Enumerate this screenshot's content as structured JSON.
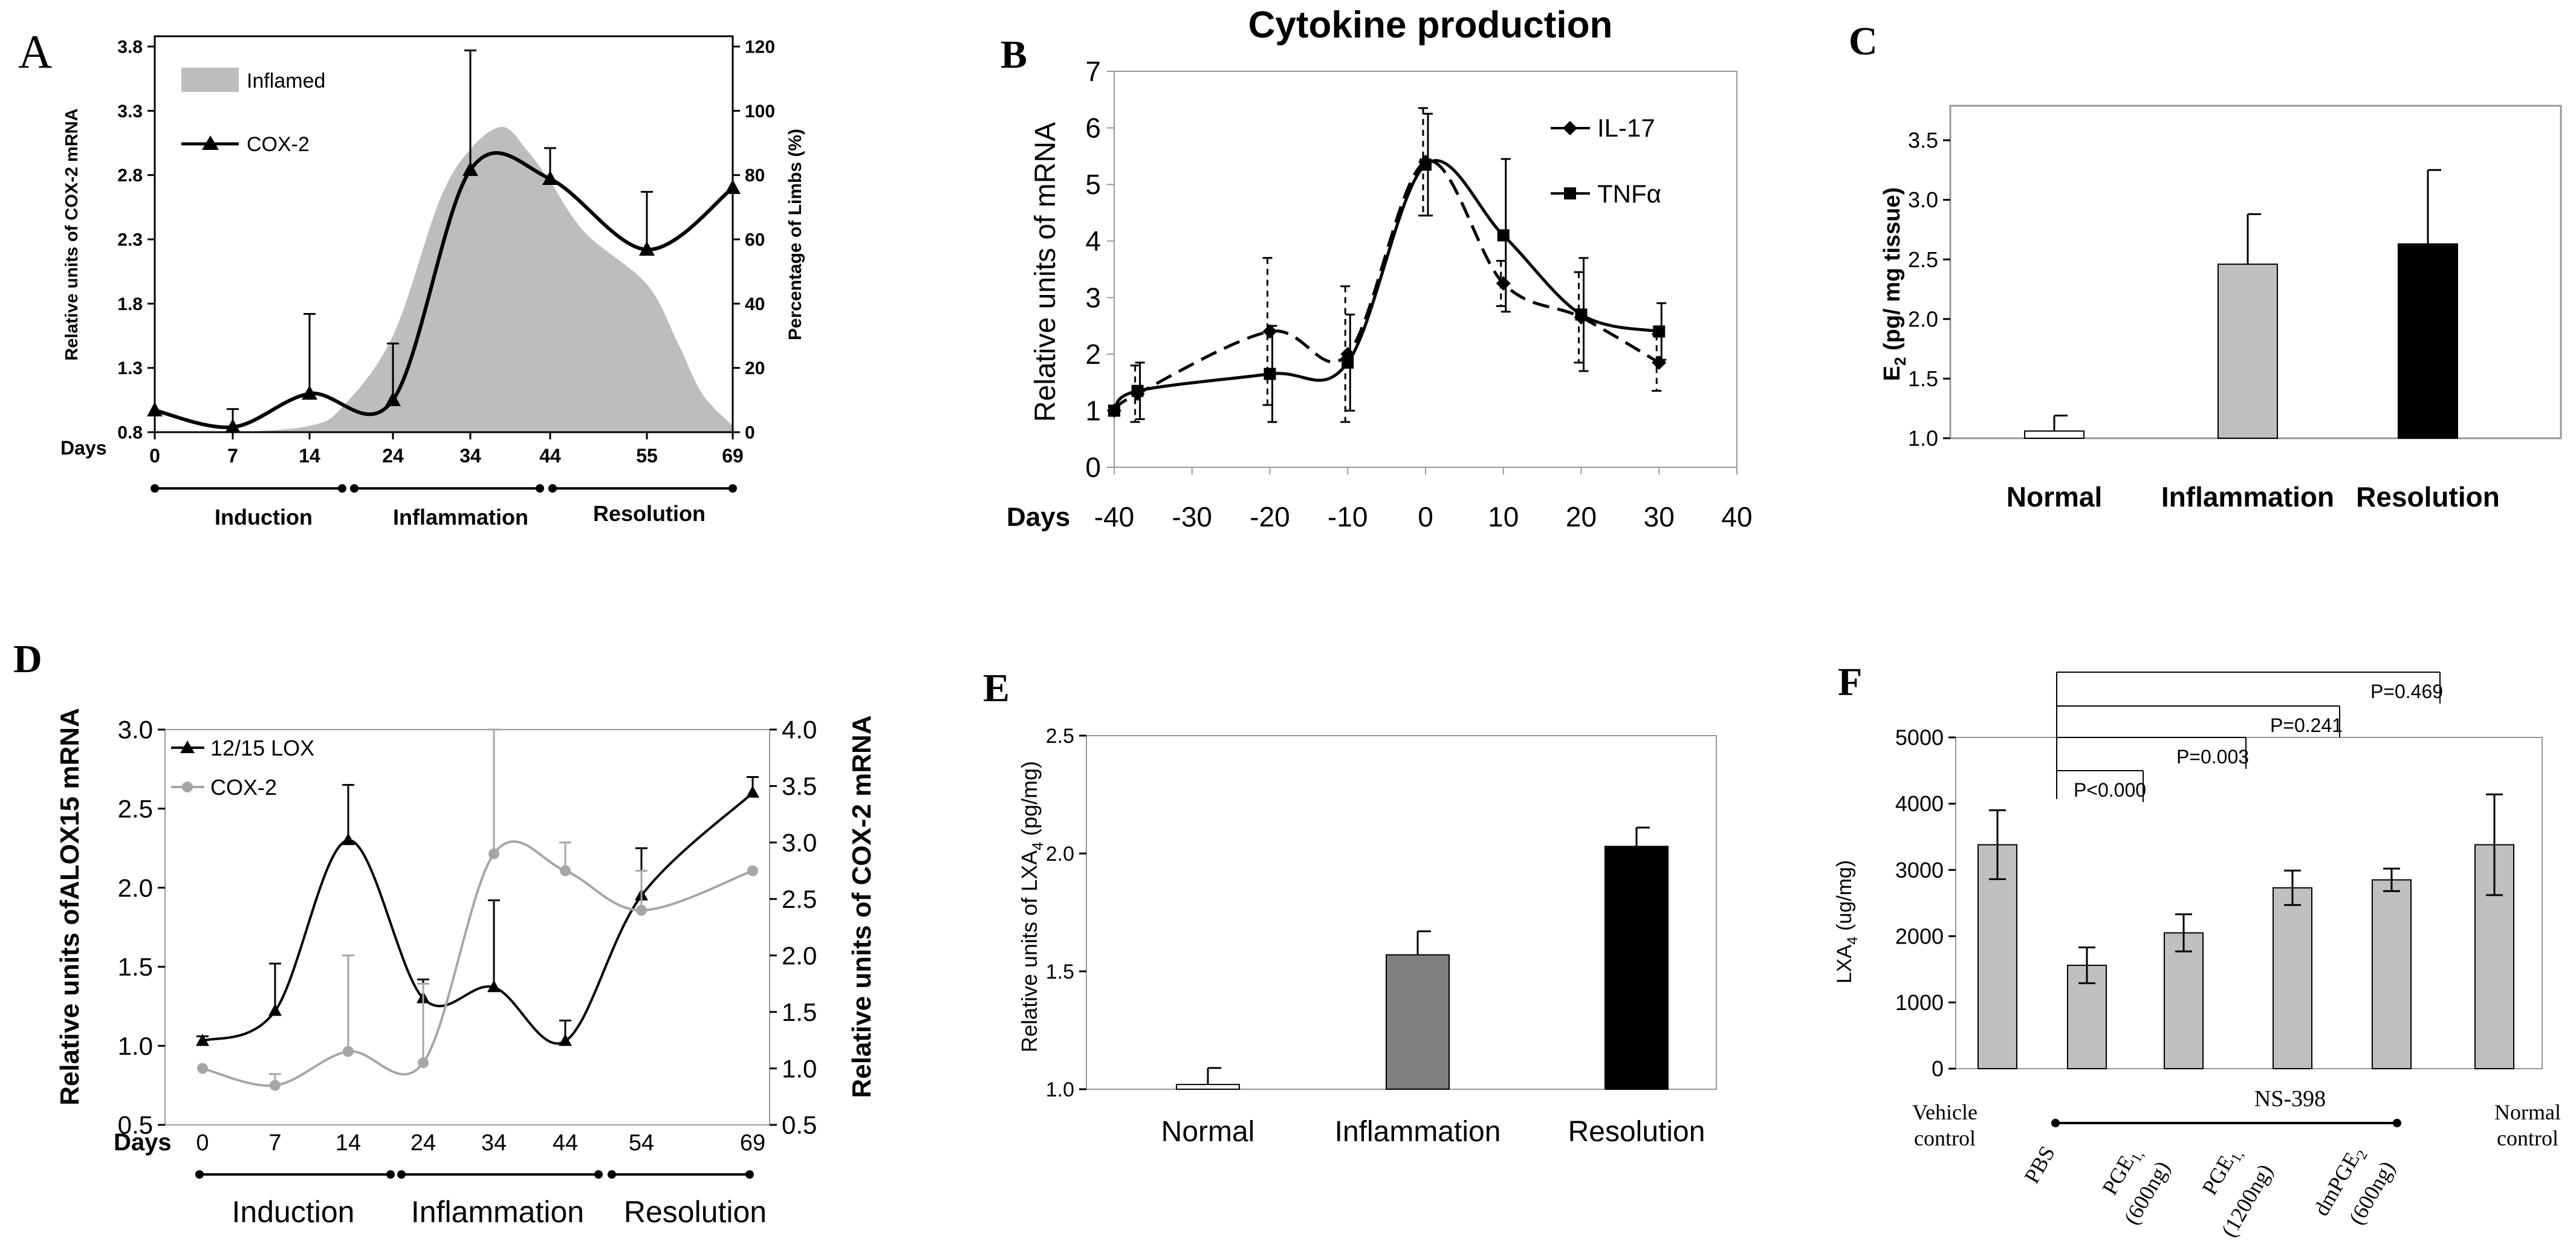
{
  "colors": {
    "axis": "#000000",
    "inflamed_area": "#bdbdbd",
    "grey_bar": "#bfbfbf",
    "dark_grey_bar": "#7f7f7f",
    "black_bar": "#000000",
    "light_grey_line": "#a6a6a6",
    "white_bar": "#ffffff"
  },
  "chart_data": [
    {
      "panel": "A",
      "type": "line",
      "xlabel": "Days",
      "categories": [
        "0",
        "7",
        "14",
        "24",
        "34",
        "44",
        "55",
        "69"
      ],
      "ylabel": "Relative units of COX-2 mRNA",
      "yticks": [
        "0.8",
        "1.3",
        "1.8",
        "2.3",
        "2.8",
        "3.3",
        "3.8"
      ],
      "ylim": [
        0.8,
        3.8
      ],
      "y2label": "Percentage of Limbs (%)",
      "y2ticks": [
        "0",
        "20",
        "40",
        "60",
        "80",
        "100",
        "120"
      ],
      "y2lim": [
        0,
        120
      ],
      "legend": [
        "Inflamed",
        "COX-2"
      ],
      "phases": [
        "Induction",
        "Inflammation",
        "Resolution"
      ],
      "series": [
        {
          "name": "COX-2",
          "values": [
            0.97,
            0.84,
            1.1,
            1.05,
            2.84,
            2.77,
            2.22,
            2.7
          ],
          "err": [
            0,
            0.14,
            0.62,
            0.44,
            0.93,
            0.24,
            0.45,
            0
          ]
        },
        {
          "name": "Inflamed",
          "axis": "y2",
          "x": [
            0,
            7,
            14,
            18,
            24,
            30,
            34,
            38,
            41,
            44,
            48,
            55,
            60,
            64,
            69
          ],
          "values": [
            0,
            0,
            2,
            8,
            30,
            72,
            88,
            95,
            88,
            78,
            62,
            46,
            28,
            12,
            2
          ]
        }
      ]
    },
    {
      "panel": "B",
      "type": "line",
      "title": "Cytokine production",
      "xlabel": "Days",
      "xticks": [
        "-40",
        "-30",
        "-20",
        "-10",
        "0",
        "10",
        "20",
        "30",
        "40"
      ],
      "xlim": [
        -40,
        40
      ],
      "ylabel": "Relative units of mRNA",
      "yticks": [
        "0",
        "1",
        "2",
        "3",
        "4",
        "5",
        "6",
        "7"
      ],
      "ylim": [
        0,
        7
      ],
      "legend": [
        "IL-17",
        "TNFα"
      ],
      "series": [
        {
          "name": "IL-17",
          "x": [
            -40,
            -37,
            -20,
            -10,
            0,
            10,
            20,
            30
          ],
          "values": [
            1.0,
            1.3,
            2.4,
            2.0,
            5.4,
            3.25,
            2.65,
            1.85
          ],
          "err": [
            0,
            0.5,
            1.3,
            1.2,
            0.95,
            0.4,
            0.8,
            0.5
          ]
        },
        {
          "name": "TNFα",
          "x": [
            -40,
            -37,
            -20,
            -10,
            0,
            10,
            20,
            30
          ],
          "values": [
            1.0,
            1.35,
            1.65,
            1.85,
            5.35,
            4.1,
            2.7,
            2.4
          ],
          "err": [
            0,
            0.5,
            0.85,
            0.85,
            0.9,
            1.35,
            1.0,
            0.5
          ]
        }
      ]
    },
    {
      "panel": "C",
      "type": "bar",
      "categories": [
        "Normal",
        "Inflammation",
        "Resolution"
      ],
      "ylabel": "E2 (pg/ mg tissue)",
      "yticks": [
        "1.0",
        "1.5",
        "2.0",
        "2.5",
        "3.0",
        "3.5"
      ],
      "ylim": [
        1.0,
        3.5
      ],
      "values": [
        1.06,
        2.46,
        2.63
      ],
      "err": [
        0.13,
        0.42,
        0.62
      ],
      "fills": [
        "white",
        "light-grey",
        "black"
      ]
    },
    {
      "panel": "D",
      "type": "line",
      "xlabel": "Days",
      "categories": [
        "0",
        "7",
        "14",
        "24",
        "34",
        "44",
        "54",
        "69"
      ],
      "ylabel": "Relative units ofALOX15 mRNA",
      "yticks": [
        "0.5",
        "1.0",
        "1.5",
        "2.0",
        "2.5",
        "3.0"
      ],
      "ylim": [
        0.5,
        3.0
      ],
      "y2label": "Relative units of COX-2 mRNA",
      "y2ticks": [
        "0.5",
        "1.0",
        "1.5",
        "2.0",
        "2.5",
        "3.0",
        "3.5",
        "4.0"
      ],
      "y2lim": [
        0.5,
        4.0
      ],
      "legend": [
        "12/15 LOX",
        "COX-2"
      ],
      "phases": [
        "Induction",
        "Inflammation",
        "Resolution"
      ],
      "series": [
        {
          "name": "12/15 LOX",
          "values": [
            1.03,
            1.22,
            2.3,
            1.3,
            1.37,
            1.03,
            1.95,
            2.6
          ],
          "err": [
            0.03,
            0.3,
            0.35,
            0.12,
            0.55,
            0.13,
            0.3,
            0.1
          ]
        },
        {
          "name": "COX-2",
          "axis": "y2",
          "values": [
            1.0,
            0.85,
            1.15,
            1.05,
            2.9,
            2.75,
            2.4,
            2.75
          ],
          "err": [
            0,
            0.1,
            0.85,
            0.7,
            1.1,
            0.25,
            0.35,
            0
          ]
        }
      ]
    },
    {
      "panel": "E",
      "type": "bar",
      "categories": [
        "Normal",
        "Inflammation",
        "Resolution"
      ],
      "ylabel": "Relative units of LXA4 (pg/mg)",
      "yticks": [
        "1.0",
        "1.5",
        "2.0",
        "2.5"
      ],
      "ylim": [
        1.0,
        2.5
      ],
      "values": [
        1.02,
        1.57,
        2.03
      ],
      "err": [
        0.07,
        0.1,
        0.08
      ],
      "fills": [
        "white",
        "dark-grey",
        "black"
      ]
    },
    {
      "panel": "F",
      "type": "bar",
      "categories": [
        "Vehicle control",
        "PBS",
        "PGE1 (600ng)",
        "PGE1 (1200ng)",
        "dmPGE2 (600ng)",
        "Normal control"
      ],
      "group_label": "NS-398",
      "ylabel": "LXA4 (ug/mg)",
      "yticks": [
        "0",
        "1000",
        "2000",
        "3000",
        "4000",
        "5000"
      ],
      "ylim": [
        0,
        5000
      ],
      "values": [
        3380,
        1560,
        2050,
        2730,
        2850,
        3380
      ],
      "err": [
        520,
        270,
        280,
        260,
        170,
        760
      ],
      "pvalues": [
        "P<0.000",
        "P=0.003",
        "P=0.241",
        "P=0.469"
      ]
    }
  ],
  "labels": {
    "A": {
      "letter": "A",
      "days": "Days",
      "ylab": "Relative units of COX-2 mRNA",
      "y2lab": "Percentage of Limbs (%)",
      "leg_inflamed": "Inflamed",
      "leg_cox": "COX-2",
      "ph1": "Induction",
      "ph2": "Inflammation",
      "ph3": "Resolution"
    },
    "B": {
      "letter": "B",
      "title": "Cytokine production",
      "days": "Days",
      "ylab": "Relative units of mRNA",
      "leg1": "IL-17",
      "leg2": "TNFα"
    },
    "C": {
      "letter": "C",
      "ylab_main": "E",
      "ylab_sub": "2",
      "ylab_rest": " (pg/ mg tissue)",
      "cat1": "Normal",
      "cat2": "Inflammation",
      "cat3": "Resolution"
    },
    "D": {
      "letter": "D",
      "days": "Days",
      "ylab": "Relative units ofALOX15 mRNA",
      "y2lab": "Relative units of COX-2 mRNA",
      "leg1": "12/15 LOX",
      "leg2": "COX-2",
      "ph1": "Induction",
      "ph2": "Inflammation",
      "ph3": "Resolution"
    },
    "E": {
      "letter": "E",
      "ylab_main": "Relative units of LXA",
      "ylab_sub": "4",
      "ylab_rest": " (pg/mg)",
      "cat1": "Normal",
      "cat2": "Inflammation",
      "cat3": "Resolution"
    },
    "F": {
      "letter": "F",
      "ylab_main": "LXA",
      "ylab_sub": "4",
      "ylab_rest": " (ug/mg)",
      "vehicle1": "Vehicle",
      "vehicle2": "control",
      "pbs": "PBS",
      "pge1a_main": "PGE",
      "pge1a_sub": "1,",
      "pge1a_dose": "(600ng)",
      "pge1b_main": "PGE",
      "pge1b_sub": "1,",
      "pge1b_dose": "(1200ng)",
      "dm_main": "dmPGE",
      "dm_sub": "2",
      "dm_dose": "(600ng)",
      "normal1": "Normal",
      "normal2": "control",
      "ns": "NS-398"
    }
  }
}
